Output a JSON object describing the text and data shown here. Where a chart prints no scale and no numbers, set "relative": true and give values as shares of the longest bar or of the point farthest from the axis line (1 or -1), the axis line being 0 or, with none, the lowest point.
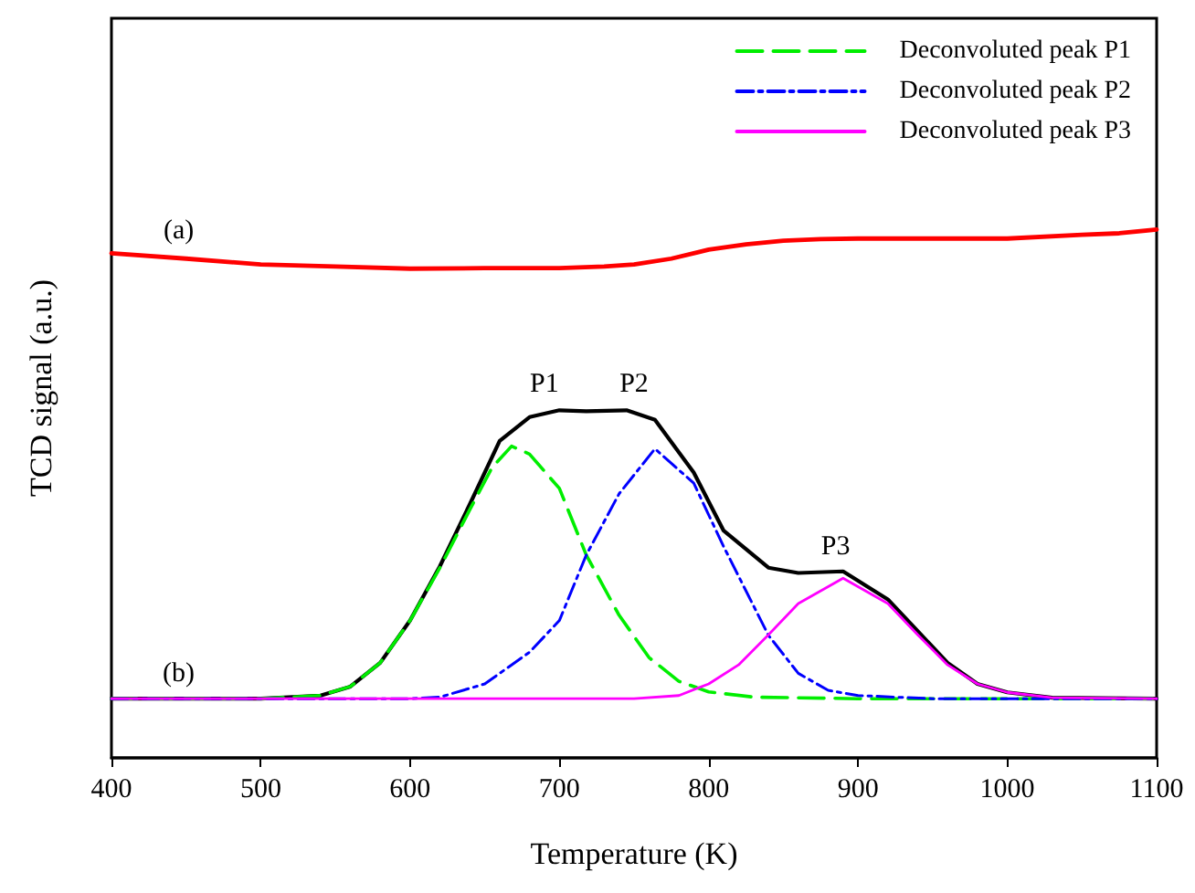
{
  "chart_data": {
    "type": "line",
    "xlabel": "Temperature (K)",
    "ylabel": "TCD signal (a.u.)",
    "relative": true,
    "xlim": [
      400,
      1100
    ],
    "xticks": [
      400,
      500,
      600,
      700,
      800,
      900,
      1000,
      1100
    ],
    "tick_labels": "x",
    "grid": false,
    "marker": "none",
    "legend": "top right",
    "series": [
      {
        "color": "#ff0000",
        "line_style": "solid",
        "x": [
          400,
          450,
          500,
          550,
          600,
          650,
          700,
          730,
          750,
          775,
          800,
          825,
          850,
          875,
          900,
          950,
          1000,
          1050,
          1075,
          1100
        ],
        "values": [
          0.955,
          0.945,
          0.934,
          0.93,
          0.926,
          0.927,
          0.927,
          0.93,
          0.934,
          0.945,
          0.962,
          0.972,
          0.979,
          0.982,
          0.983,
          0.983,
          0.983,
          0.99,
          0.993,
          1.0
        ]
      },
      {
        "color": "#000000",
        "line_style": "solid",
        "x": [
          400,
          500,
          540,
          560,
          580,
          600,
          620,
          640,
          660,
          680,
          700,
          718,
          745,
          764,
          790,
          810,
          840,
          860,
          890,
          920,
          940,
          960,
          980,
          1000,
          1030,
          1100
        ],
        "values": [
          0.112,
          0.112,
          0.118,
          0.135,
          0.18,
          0.26,
          0.363,
          0.48,
          0.6,
          0.645,
          0.658,
          0.656,
          0.658,
          0.64,
          0.54,
          0.43,
          0.36,
          0.35,
          0.353,
          0.3,
          0.24,
          0.18,
          0.14,
          0.124,
          0.114,
          0.112
        ]
      },
      {
        "name": "Deconvoluted peak P1",
        "color": "#00ee00",
        "line_style": "dashed",
        "x": [
          400,
          500,
          540,
          560,
          580,
          600,
          620,
          640,
          655,
          668,
          680,
          700,
          718,
          740,
          760,
          780,
          800,
          830,
          900,
          1100
        ],
        "values": [
          0.112,
          0.112,
          0.118,
          0.135,
          0.18,
          0.26,
          0.36,
          0.47,
          0.55,
          0.59,
          0.575,
          0.51,
          0.384,
          0.27,
          0.19,
          0.145,
          0.125,
          0.115,
          0.112,
          0.112
        ]
      },
      {
        "name": "Deconvoluted peak P2",
        "color": "#0000ff",
        "line_style": "dashdot",
        "x": [
          400,
          600,
          620,
          650,
          680,
          700,
          718,
          740,
          764,
          790,
          810,
          840,
          860,
          880,
          900,
          950,
          1100
        ],
        "values": [
          0.112,
          0.112,
          0.115,
          0.14,
          0.2,
          0.26,
          0.384,
          0.5,
          0.585,
          0.52,
          0.4,
          0.232,
          0.16,
          0.128,
          0.118,
          0.112,
          0.112
        ]
      },
      {
        "name": "Deconvoluted peak P3",
        "color": "#ff00ff",
        "line_style": "solid",
        "x": [
          400,
          750,
          780,
          800,
          820,
          840,
          860,
          890,
          920,
          940,
          960,
          980,
          1000,
          1030,
          1100
        ],
        "values": [
          0.112,
          0.112,
          0.118,
          0.14,
          0.176,
          0.233,
          0.292,
          0.34,
          0.292,
          0.233,
          0.176,
          0.14,
          0.124,
          0.114,
          0.112
        ]
      }
    ],
    "annotations": [
      {
        "text": "(a)",
        "x": 445,
        "y": 0.95
      },
      {
        "text": "(b)",
        "x": 445,
        "y": 0.112
      },
      {
        "text": "P1",
        "x": 690,
        "y": 0.661
      },
      {
        "text": "P2",
        "x": 750,
        "y": 0.661
      },
      {
        "text": "P3",
        "x": 885,
        "y": 0.353
      }
    ]
  }
}
